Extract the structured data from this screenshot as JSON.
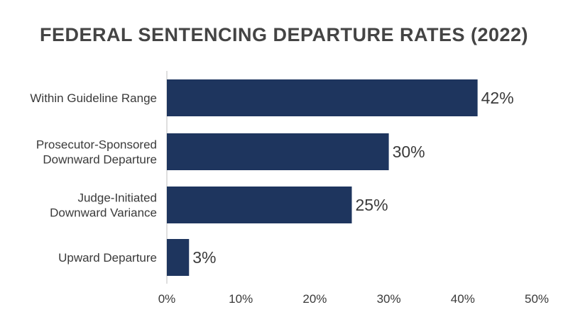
{
  "chart_data": {
    "type": "bar",
    "orientation": "horizontal",
    "title": "FEDERAL SENTENCING DEPARTURE RATES (2022)",
    "categories": [
      [
        "Within Guideline Range"
      ],
      [
        "Prosecutor-Sponsored",
        "Downward Departure"
      ],
      [
        "Judge-Initiated",
        "Downward Variance"
      ],
      [
        "Upward Departure"
      ]
    ],
    "values": [
      42,
      30,
      25,
      3
    ],
    "value_labels": [
      "42%",
      "30%",
      "25%",
      "3%"
    ],
    "xlim": [
      0,
      50
    ],
    "xticks": [
      0,
      10,
      20,
      30,
      40,
      50
    ],
    "xtick_labels": [
      "0%",
      "10%",
      "20%",
      "30%",
      "40%",
      "50%"
    ],
    "grid": false,
    "colors": {
      "bar": "#1e355e",
      "axis": "#bfbfbf",
      "text": "#3a3a3a",
      "title": "#444444"
    }
  }
}
